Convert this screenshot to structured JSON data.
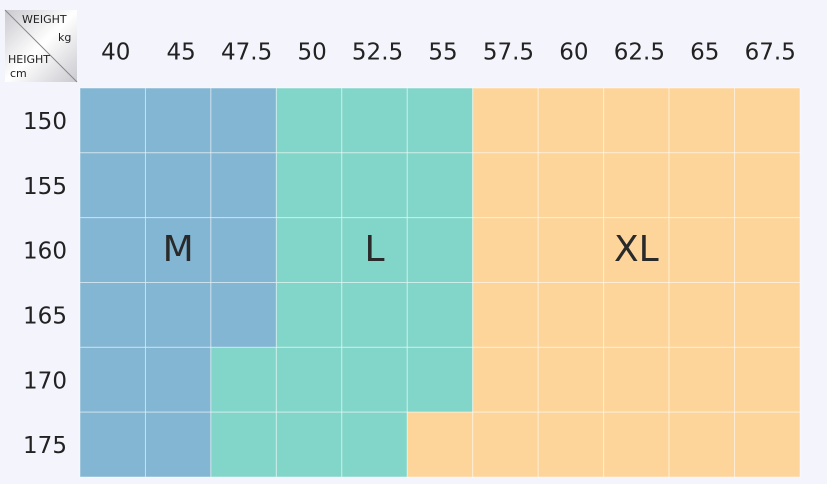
{
  "corner": {
    "weight": "WEIGHT",
    "weight_unit": "kg",
    "height": "HEIGHT",
    "height_unit": "cm"
  },
  "weights": [
    "40",
    "45",
    "47.5",
    "50",
    "52.5",
    "55",
    "57.5",
    "60",
    "62.5",
    "65",
    "67.5"
  ],
  "heights": [
    "150",
    "155",
    "160",
    "165",
    "170",
    "175"
  ],
  "sizes": [
    {
      "label": "M",
      "color": "#82b6d3"
    },
    {
      "label": "L",
      "color": "#82d5c9"
    },
    {
      "label": "XL",
      "color": "#fdd59a"
    }
  ]
}
